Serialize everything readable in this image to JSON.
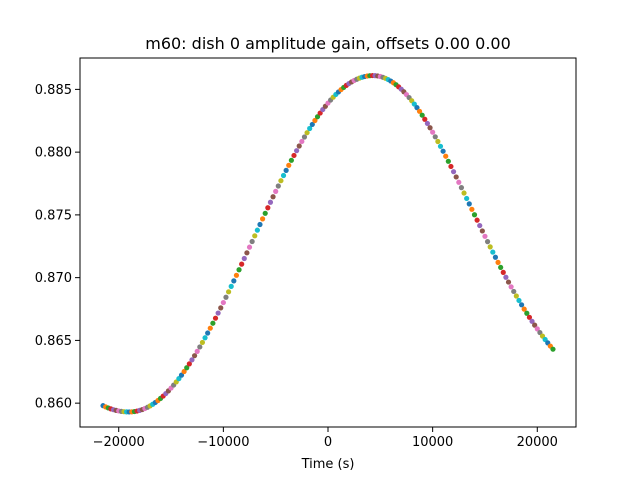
{
  "chart_data": {
    "type": "scatter",
    "title": "m60: dish 0 amplitude gain, offsets 0.00 0.00",
    "xlabel": "Time (s)",
    "ylabel": "",
    "xlim": [
      -23700,
      23700
    ],
    "ylim": [
      0.8581,
      0.8875
    ],
    "x_ticks": [
      -20000,
      -10000,
      0,
      10000,
      20000
    ],
    "x_tick_labels": [
      "−20000",
      "−10000",
      "0",
      "10000",
      "20000"
    ],
    "y_ticks": [
      0.86,
      0.865,
      0.87,
      0.875,
      0.88,
      0.885
    ],
    "y_tick_labels": [
      "0.860",
      "0.865",
      "0.870",
      "0.875",
      "0.880",
      "0.885"
    ],
    "grid": false,
    "legend": "none",
    "model": {
      "x_start": -21500,
      "x_end": 21500,
      "x_step": 250,
      "min_time": -19000,
      "min_value": 0.8593,
      "max_time": 4300,
      "max_value": 0.8861,
      "end_value": 0.8643
    },
    "marker_colors": [
      "#1f77b4",
      "#ff7f0e",
      "#2ca02c",
      "#d62728",
      "#9467bd",
      "#8c564b",
      "#e377c2",
      "#7f7f7f",
      "#bcbd22",
      "#17becf"
    ]
  }
}
